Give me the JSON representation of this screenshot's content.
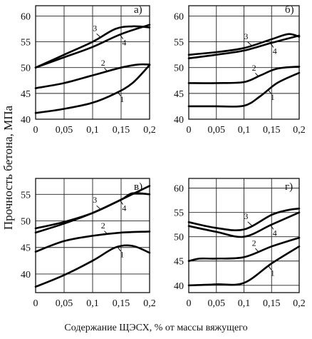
{
  "y_axis_title": "Прочность бетона, МПа",
  "x_axis_title": "Содержание  ЩЭСХ, % от массы вяжущего",
  "chart_data": [
    {
      "type": "line",
      "panel_label": "а)",
      "x_ticks": [
        "0",
        "0,05",
        "0,1",
        "0,15",
        "0,2"
      ],
      "y_ticks": [
        "40",
        "45",
        "50",
        "55",
        "60"
      ],
      "xlim": [
        0,
        0.2
      ],
      "ylim": [
        40,
        62
      ],
      "grid": true,
      "series": [
        {
          "name": "1",
          "x": [
            0,
            0.05,
            0.1,
            0.14,
            0.17,
            0.2
          ],
          "y": [
            41.2,
            42.0,
            43.2,
            45.0,
            47.0,
            50.5
          ]
        },
        {
          "name": "2",
          "x": [
            0,
            0.05,
            0.1,
            0.15,
            0.18,
            0.2
          ],
          "y": [
            46.0,
            47.0,
            48.5,
            50.0,
            50.6,
            50.6
          ]
        },
        {
          "name": "3",
          "x": [
            0,
            0.05,
            0.1,
            0.14,
            0.17,
            0.2
          ],
          "y": [
            50.0,
            52.5,
            55.0,
            57.5,
            58.0,
            57.8
          ]
        },
        {
          "name": "4",
          "x": [
            0,
            0.05,
            0.1,
            0.15,
            0.2
          ],
          "y": [
            50.0,
            52.0,
            54.0,
            56.5,
            58.3
          ]
        }
      ]
    },
    {
      "type": "line",
      "panel_label": "б)",
      "x_ticks": [
        "0",
        "0,05",
        "0,1",
        "0,15",
        "0,2"
      ],
      "y_ticks": [
        "40",
        "45",
        "50",
        "55",
        "60"
      ],
      "xlim": [
        0,
        0.2
      ],
      "ylim": [
        40,
        62
      ],
      "grid": true,
      "series": [
        {
          "name": "1",
          "x": [
            0,
            0.05,
            0.1,
            0.13,
            0.16,
            0.2
          ],
          "y": [
            42.5,
            42.5,
            42.6,
            44.5,
            47.0,
            49.0
          ]
        },
        {
          "name": "2",
          "x": [
            0,
            0.05,
            0.1,
            0.13,
            0.16,
            0.2
          ],
          "y": [
            47.0,
            47.0,
            47.2,
            48.5,
            49.8,
            50.2
          ]
        },
        {
          "name": "3",
          "x": [
            0,
            0.05,
            0.1,
            0.15,
            0.18,
            0.2
          ],
          "y": [
            52.5,
            53.0,
            53.8,
            55.5,
            56.5,
            56.0
          ]
        },
        {
          "name": "4",
          "x": [
            0,
            0.05,
            0.1,
            0.15,
            0.2
          ],
          "y": [
            51.8,
            52.5,
            53.3,
            54.8,
            56.2
          ]
        }
      ]
    },
    {
      "type": "line",
      "panel_label": "в)",
      "x_ticks": [
        "0",
        "0,05",
        "0,1",
        "0,15",
        "0,2"
      ],
      "y_ticks": [
        "40",
        "45",
        "50",
        "55"
      ],
      "xlim": [
        0,
        0.2
      ],
      "ylim": [
        36.5,
        58
      ],
      "grid": true,
      "series": [
        {
          "name": "1",
          "x": [
            0,
            0.05,
            0.1,
            0.14,
            0.17,
            0.2
          ],
          "y": [
            37.6,
            39.8,
            42.5,
            45.0,
            45.3,
            44.0
          ]
        },
        {
          "name": "2",
          "x": [
            0,
            0.05,
            0.1,
            0.15,
            0.2
          ],
          "y": [
            44.2,
            46.2,
            47.2,
            47.8,
            48.0
          ]
        },
        {
          "name": "3",
          "x": [
            0,
            0.05,
            0.1,
            0.15,
            0.17,
            0.2
          ],
          "y": [
            48.6,
            49.8,
            51.5,
            54.0,
            55.2,
            55.0
          ]
        },
        {
          "name": "4",
          "x": [
            0,
            0.05,
            0.1,
            0.15,
            0.2
          ],
          "y": [
            47.8,
            49.5,
            51.5,
            54.0,
            56.6
          ]
        }
      ]
    },
    {
      "type": "line",
      "panel_label": "г)",
      "x_ticks": [
        "0",
        "0,05",
        "0,1",
        "0,15",
        "0,2"
      ],
      "y_ticks": [
        "40",
        "45",
        "50",
        "55",
        "60"
      ],
      "xlim": [
        0,
        0.2
      ],
      "ylim": [
        38.5,
        62
      ],
      "grid": true,
      "series": [
        {
          "name": "1",
          "x": [
            0,
            0.05,
            0.1,
            0.15,
            0.2
          ],
          "y": [
            40.0,
            40.2,
            40.5,
            44.5,
            48.0
          ]
        },
        {
          "name": "2",
          "x": [
            0,
            0.02,
            0.05,
            0.1,
            0.15,
            0.2
          ],
          "y": [
            45.0,
            45.5,
            45.5,
            45.8,
            48.0,
            49.8
          ]
        },
        {
          "name": "3",
          "x": [
            0,
            0.05,
            0.1,
            0.15,
            0.18,
            0.2
          ],
          "y": [
            53.0,
            51.8,
            51.5,
            54.5,
            55.5,
            55.8
          ]
        },
        {
          "name": "4",
          "x": [
            0,
            0.05,
            0.1,
            0.15,
            0.2
          ],
          "y": [
            52.2,
            51.0,
            50.0,
            52.5,
            55.0
          ]
        }
      ]
    }
  ]
}
